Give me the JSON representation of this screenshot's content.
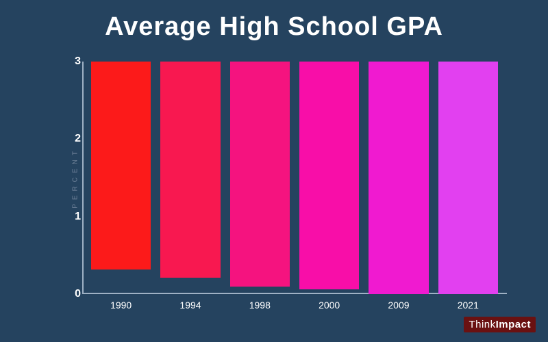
{
  "background_color": "#25435f",
  "title": {
    "text": "Average High School GPA",
    "color": "#ffffff",
    "fontsize": 38
  },
  "chart": {
    "type": "bar",
    "ymax": 3,
    "axis_line_color": "#9fb1c4",
    "y_label": {
      "text": "PERCENT",
      "color": "#6e8299"
    },
    "y_ticks": [
      {
        "value": 0,
        "label": "0"
      },
      {
        "value": 1,
        "label": "1"
      },
      {
        "value": 2,
        "label": "2"
      },
      {
        "value": 3,
        "label": "3"
      }
    ],
    "y_tick_color": "#ffffff",
    "x_label_color": "#ffffff",
    "bars": [
      {
        "label": "1990",
        "value": 2.68,
        "color": "#fc1a1a"
      },
      {
        "label": "1994",
        "value": 2.79,
        "color": "#f81850"
      },
      {
        "label": "1998",
        "value": 2.9,
        "color": "#f5137f"
      },
      {
        "label": "2000",
        "value": 2.94,
        "color": "#f80ea8"
      },
      {
        "label": "2009",
        "value": 3.0,
        "color": "#f01ad0"
      },
      {
        "label": "2021",
        "value": 3.0,
        "color": "#e240f0"
      }
    ]
  },
  "logo": {
    "word1": "Think",
    "word2": "Impact",
    "bg": "#6a1111",
    "fg": "#ffffff"
  }
}
